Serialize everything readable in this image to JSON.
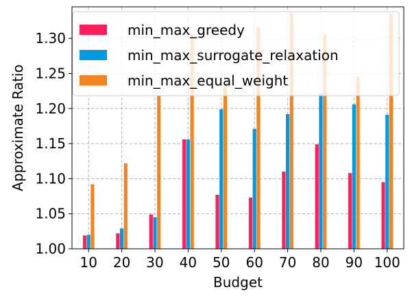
{
  "chart_data": {
    "type": "bar",
    "xlabel": "Budget",
    "ylabel": "Approximate Ratio",
    "categories": [
      "10",
      "20",
      "30",
      "40",
      "50",
      "60",
      "70",
      "80",
      "90",
      "100"
    ],
    "ylim": [
      1.0,
      1.345
    ],
    "yticks": [
      "1.00",
      "1.05",
      "1.10",
      "1.15",
      "1.20",
      "1.25",
      "1.30"
    ],
    "grid": true,
    "legend_position": "top-left",
    "series": [
      {
        "name": "min_max_greedy",
        "color": "#ff1f5b",
        "values": [
          1.019,
          1.022,
          1.049,
          1.156,
          1.077,
          1.073,
          1.11,
          1.149,
          1.108,
          1.095
        ]
      },
      {
        "name": "min_max_surrogate_relaxation",
        "color": "#009ade",
        "values": [
          1.02,
          1.029,
          1.045,
          1.156,
          1.199,
          1.171,
          1.192,
          1.221,
          1.206,
          1.191
        ]
      },
      {
        "name": "min_max_equal_weight",
        "color": "#f28522",
        "values": [
          1.092,
          1.122,
          1.218,
          1.305,
          1.236,
          1.316,
          1.336,
          1.305,
          1.245,
          1.335
        ]
      }
    ]
  }
}
